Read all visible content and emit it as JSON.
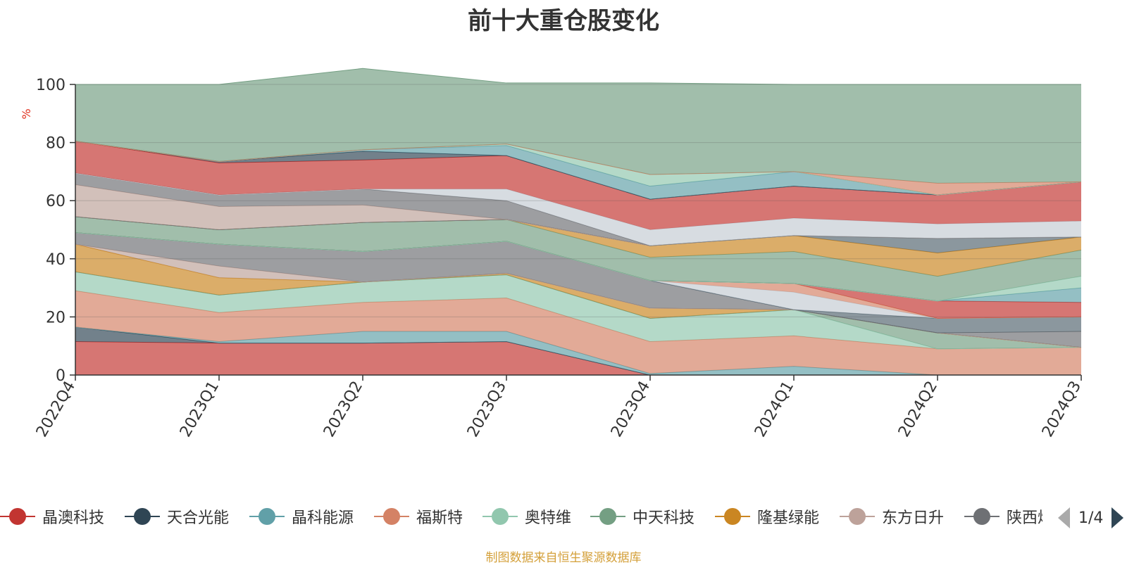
{
  "chart_data": {
    "type": "area",
    "stacked": true,
    "title": "前十大重仓股变化",
    "ylabel": "%",
    "ylim": [
      0,
      100
    ],
    "yticks": [
      0,
      20,
      40,
      60,
      80,
      100
    ],
    "categories": [
      "2022Q4",
      "2023Q1",
      "2023Q2",
      "2023Q3",
      "2023Q4",
      "2024Q1",
      "2024Q2",
      "2024Q3"
    ],
    "series": [
      {
        "name": "晶澳科技",
        "color": "#c23531",
        "values": [
          11.5,
          11,
          11,
          11.5,
          0,
          0,
          0,
          0
        ]
      },
      {
        "name": "天合光能",
        "color": "#2f4554",
        "values": [
          5,
          0,
          0,
          0,
          0,
          0,
          0,
          0
        ]
      },
      {
        "name": "晶科能源",
        "color": "#61a0a8",
        "values": [
          0,
          0.5,
          4,
          3.5,
          0.5,
          3,
          0,
          0
        ]
      },
      {
        "name": "福斯特",
        "color": "#d48265",
        "values": [
          12.5,
          10,
          10,
          11.5,
          11,
          10.5,
          9,
          9.5
        ]
      },
      {
        "name": "奥特维",
        "color": "#91c7ae",
        "values": [
          6.5,
          6,
          7,
          8,
          8,
          9,
          0,
          0
        ]
      },
      {
        "name": "中天科技",
        "color": "#749f83",
        "values": [
          0,
          0,
          0,
          0,
          0,
          0,
          5.5,
          0
        ]
      },
      {
        "name": "隆基绿能",
        "color": "#ca8622",
        "values": [
          9.5,
          6,
          0,
          0.5,
          3.5,
          0,
          0,
          0
        ]
      },
      {
        "name": "东方日升",
        "color": "#bda29a",
        "values": [
          0,
          4,
          0,
          0,
          0,
          0,
          0,
          0
        ]
      },
      {
        "name": "陕西煤业",
        "color": "#6e7074",
        "values": [
          4,
          7.5,
          10.5,
          11,
          9.5,
          0,
          0,
          5.5
        ]
      },
      {
        "name": "",
        "color": "#546570",
        "values": [
          0,
          0,
          0,
          0,
          0,
          0,
          5,
          5
        ]
      },
      {
        "name": "",
        "color": "#c4ccd3",
        "values": [
          0,
          0,
          0,
          0,
          0,
          6,
          0,
          0
        ]
      },
      {
        "name": "",
        "color": "#d48265",
        "values": [
          0,
          0,
          0,
          0,
          0,
          3,
          0,
          0
        ]
      },
      {
        "name": "",
        "color": "#c23531",
        "values": [
          0,
          0,
          0,
          0,
          0,
          0,
          6,
          5
        ]
      },
      {
        "name": "",
        "color": "#61a0a8",
        "values": [
          0,
          0,
          0,
          0,
          0,
          0,
          0,
          5
        ]
      },
      {
        "name": "",
        "color": "#91c7ae",
        "values": [
          0,
          0,
          0,
          0,
          0,
          0,
          0,
          4
        ]
      },
      {
        "name": "",
        "color": "#749f83",
        "values": [
          5.5,
          5,
          10,
          7.5,
          8,
          11,
          8.5,
          9
        ]
      },
      {
        "name": "",
        "color": "#ca8622",
        "values": [
          0,
          0,
          0,
          0,
          4,
          5.5,
          8,
          4.5
        ]
      },
      {
        "name": "",
        "color": "#546570",
        "values": [
          0,
          0,
          0,
          0,
          0,
          0,
          5,
          0
        ]
      },
      {
        "name": "",
        "color": "#bda29a",
        "values": [
          11,
          8,
          6,
          0,
          0,
          0,
          0,
          0
        ]
      },
      {
        "name": "",
        "color": "#6e7074",
        "values": [
          4,
          4,
          5.5,
          6.5,
          0,
          0,
          0,
          0
        ]
      },
      {
        "name": "",
        "color": "#c4ccd3",
        "values": [
          0,
          0,
          0,
          4,
          5.5,
          6,
          5,
          5.5
        ]
      },
      {
        "name": "",
        "color": "#c23531",
        "values": [
          11,
          11,
          10,
          11.5,
          10.5,
          11,
          10,
          13.5
        ]
      },
      {
        "name": "",
        "color": "#2f4554",
        "values": [
          0,
          0.5,
          3,
          0,
          0,
          0,
          0,
          0
        ]
      },
      {
        "name": "",
        "color": "#61a0a8",
        "values": [
          0,
          0,
          0.5,
          3.5,
          4.5,
          5,
          0,
          0
        ]
      },
      {
        "name": "",
        "color": "#91c7ae",
        "values": [
          0,
          0,
          0,
          0.5,
          4,
          0,
          0,
          0
        ]
      },
      {
        "name": "",
        "color": "#d48265",
        "values": [
          0,
          0,
          0,
          0,
          0,
          0,
          4,
          0
        ]
      },
      {
        "name": "",
        "color": "#749f83",
        "values": [
          19.5,
          26.5,
          28,
          21,
          31.5,
          30,
          34,
          33.5
        ]
      }
    ]
  },
  "legend": {
    "items": [
      {
        "label": "晶澳科技",
        "color": "#c23531"
      },
      {
        "label": "天合光能",
        "color": "#2f4554"
      },
      {
        "label": "晶科能源",
        "color": "#61a0a8"
      },
      {
        "label": "福斯特",
        "color": "#d48265"
      },
      {
        "label": "奥特维",
        "color": "#91c7ae"
      },
      {
        "label": "中天科技",
        "color": "#749f83"
      },
      {
        "label": "隆基绿能",
        "color": "#ca8622"
      },
      {
        "label": "东方日升",
        "color": "#bda29a"
      },
      {
        "label": "陕西煤业",
        "color": "#6e7074"
      }
    ],
    "page_indicator": "1/4"
  },
  "source_note": "制图数据来自恒生聚源数据库"
}
